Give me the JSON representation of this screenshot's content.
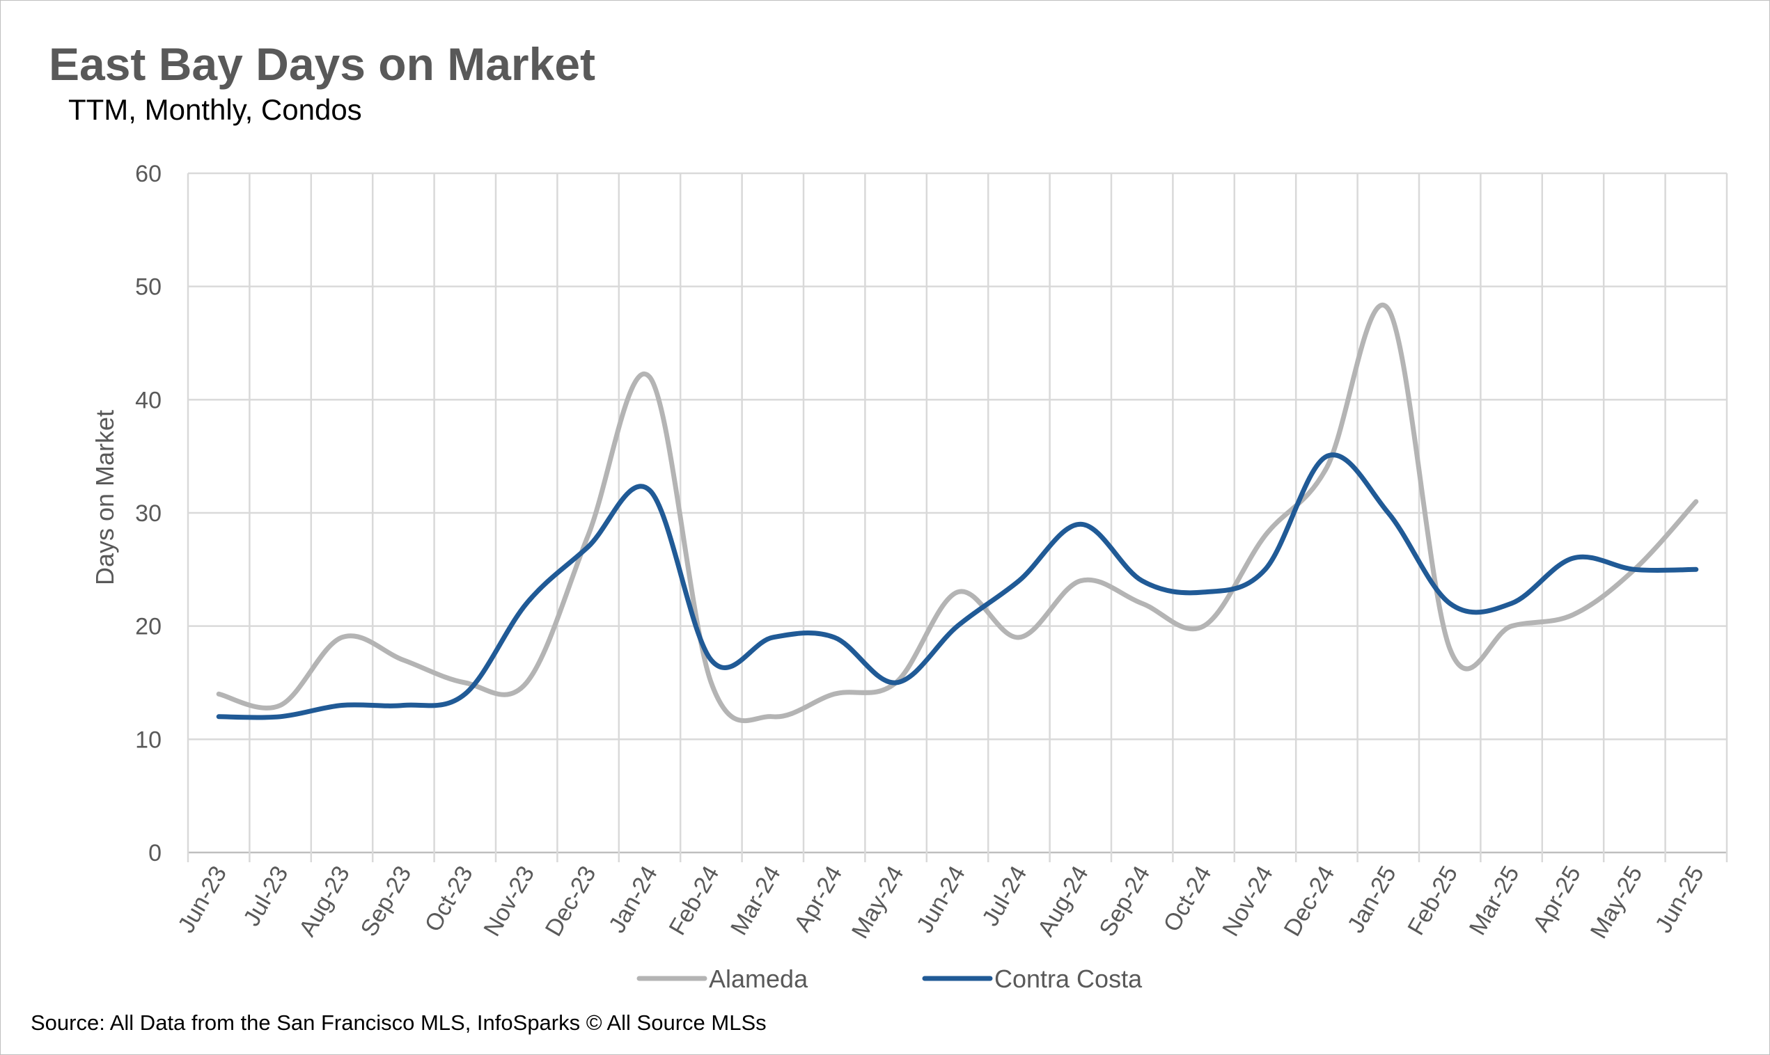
{
  "chart_data": {
    "type": "line",
    "title": "East Bay Days on Market",
    "subtitle": "TTM, Monthly, Condos",
    "xlabel": "",
    "ylabel": "Days on Market",
    "ylim": [
      0,
      60
    ],
    "yticks": [
      0,
      10,
      20,
      30,
      40,
      50,
      60
    ],
    "grid": true,
    "legend_position": "bottom",
    "categories": [
      "Jun-23",
      "Jul-23",
      "Aug-23",
      "Sep-23",
      "Oct-23",
      "Nov-23",
      "Dec-23",
      "Jan-24",
      "Feb-24",
      "Mar-24",
      "Apr-24",
      "May-24",
      "Jun-24",
      "Jul-24",
      "Aug-24",
      "Sep-24",
      "Oct-24",
      "Nov-24",
      "Dec-24",
      "Jan-25",
      "Feb-25",
      "Mar-25",
      "Apr-25",
      "May-25",
      "Jun-25"
    ],
    "series": [
      {
        "name": "Alameda",
        "color": "#b4b4b4",
        "values": [
          14,
          13,
          19,
          17,
          15,
          15,
          28,
          42,
          15,
          12,
          14,
          15,
          23,
          19,
          24,
          22,
          20,
          28,
          34,
          48,
          18,
          20,
          21,
          25,
          31
        ]
      },
      {
        "name": "Contra Costa",
        "color": "#205a96",
        "values": [
          12,
          12,
          13,
          13,
          14,
          22,
          27,
          32,
          17,
          19,
          19,
          15,
          20,
          24,
          29,
          24,
          23,
          25,
          35,
          30,
          22,
          22,
          26,
          25,
          25
        ]
      }
    ],
    "source": "Source: All Data from the San Francisco MLS, InfoSparks © All Source MLSs"
  }
}
